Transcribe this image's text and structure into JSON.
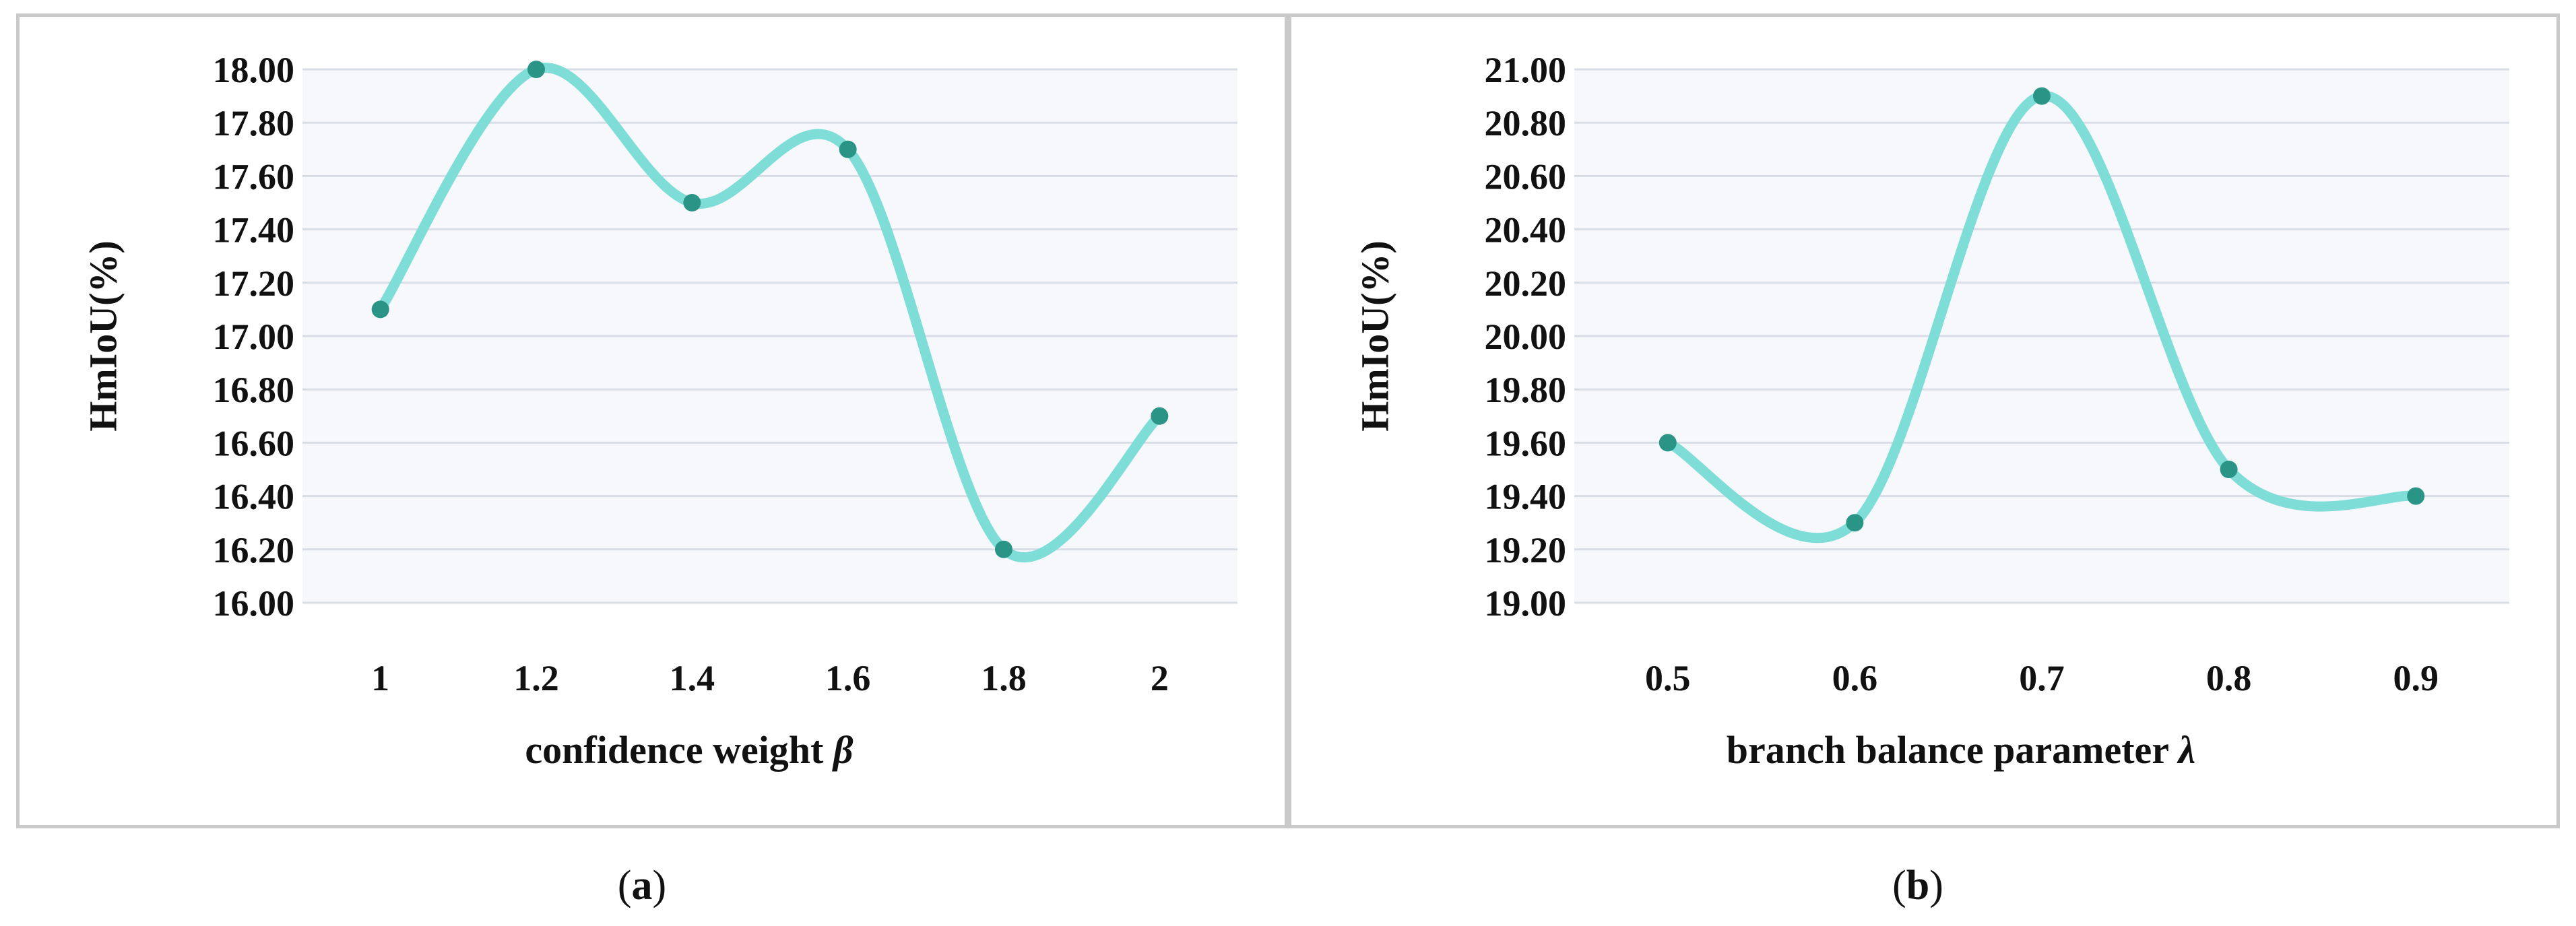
{
  "chart_data": [
    {
      "type": "line",
      "panel_label": "a",
      "ylabel": "HmIoU(%)",
      "xlabel": "confidence weight",
      "xlabel_symbol": "β",
      "categories": [
        "1",
        "1.2",
        "1.4",
        "1.6",
        "1.8",
        "2"
      ],
      "series": [
        {
          "values": [
            17.1,
            18.0,
            17.5,
            17.7,
            16.2,
            16.7
          ]
        }
      ],
      "ylim": [
        16.0,
        18.0
      ],
      "yticks": [
        "16.00",
        "16.20",
        "16.40",
        "16.60",
        "16.80",
        "17.00",
        "17.20",
        "17.40",
        "17.60",
        "17.80",
        "18.00"
      ],
      "grid": true,
      "smooth": true,
      "colors": {
        "line": "#7fddd8",
        "marker": "#2a9486",
        "plot_bg": "#f6f8fc",
        "grid": "#d9dde6"
      }
    },
    {
      "type": "line",
      "panel_label": "b",
      "ylabel": "HmIoU(%)",
      "xlabel": "branch balance parameter",
      "xlabel_symbol": "λ",
      "categories": [
        "0.5",
        "0.6",
        "0.7",
        "0.8",
        "0.9"
      ],
      "series": [
        {
          "values": [
            19.6,
            19.3,
            20.9,
            19.5,
            19.4
          ]
        }
      ],
      "ylim": [
        19.0,
        21.0
      ],
      "yticks": [
        "19.00",
        "19.20",
        "19.40",
        "19.60",
        "19.80",
        "20.00",
        "20.20",
        "20.40",
        "20.60",
        "20.80",
        "21.00"
      ],
      "grid": true,
      "smooth": true,
      "colors": {
        "line": "#7fddd8",
        "marker": "#2a9486",
        "plot_bg": "#f6f8fc",
        "grid": "#d9dde6"
      }
    }
  ]
}
